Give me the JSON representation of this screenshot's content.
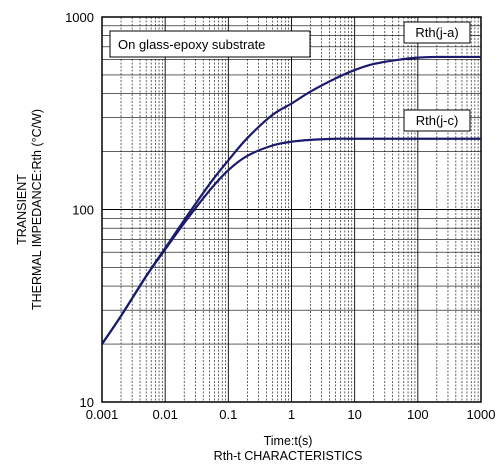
{
  "chart_data": {
    "type": "line",
    "title": "Rth-t  CHARACTERISTICS",
    "xlabel": "Time:t(s)",
    "ylabel_lines": [
      "TRANSIENT",
      "THERMAL IMPEDANCE:Rth (°C/W)"
    ],
    "x_scale": "log",
    "y_scale": "log",
    "xlim": [
      0.001,
      1000
    ],
    "ylim": [
      10,
      1000
    ],
    "x_ticks": [
      0.001,
      0.01,
      0.1,
      1,
      10,
      100,
      1000
    ],
    "x_tick_labels": [
      "0.001",
      "0.01",
      "0.1",
      "1",
      "10",
      "100",
      "1000"
    ],
    "y_ticks": [
      10,
      100,
      1000
    ],
    "y_tick_labels": [
      "10",
      "100",
      "1000"
    ],
    "grid": true,
    "annotation": "On glass-epoxy substrate",
    "series": [
      {
        "name": "Rth(j-a)",
        "color": "#1a1a6e",
        "x": [
          0.001,
          0.002,
          0.005,
          0.01,
          0.02,
          0.05,
          0.1,
          0.2,
          0.5,
          1,
          2,
          5,
          10,
          20,
          50,
          100,
          200,
          500,
          1000
        ],
        "y": [
          20,
          28,
          45,
          63,
          88,
          135,
          180,
          235,
          310,
          355,
          410,
          480,
          530,
          570,
          600,
          615,
          620,
          620,
          620
        ]
      },
      {
        "name": "Rth(j-c)",
        "color": "#1a1a6e",
        "x": [
          0.001,
          0.002,
          0.005,
          0.01,
          0.02,
          0.05,
          0.1,
          0.2,
          0.5,
          1,
          2,
          5,
          10,
          20,
          50,
          100,
          200,
          500,
          1000
        ],
        "y": [
          20,
          28,
          45,
          62,
          85,
          125,
          160,
          190,
          215,
          225,
          230,
          233,
          233,
          233,
          233,
          233,
          233,
          233,
          233
        ]
      }
    ]
  }
}
